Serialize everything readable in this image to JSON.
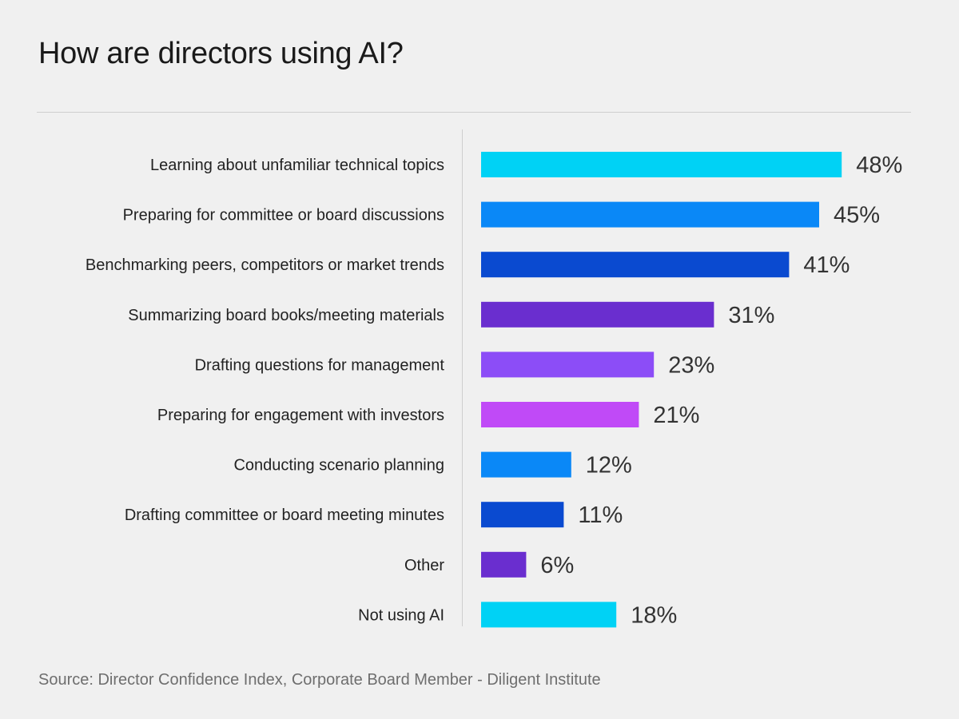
{
  "title": "How are directors using AI?",
  "source": "Source: Director Confidence Index, Corporate Board Member - Diligent Institute",
  "chart_data": {
    "type": "bar",
    "orientation": "horizontal",
    "title": "How are directors using AI?",
    "xlabel": "",
    "ylabel": "",
    "xlim": [
      0,
      50
    ],
    "grid": false,
    "legend": "none",
    "value_suffix": "%",
    "categories": [
      "Learning about unfamiliar technical topics",
      "Preparing for committee or board discussions",
      "Benchmarking peers, competitors or market trends",
      "Summarizing board books/meeting materials",
      "Drafting questions for management",
      "Preparing for engagement with investors",
      "Conducting scenario planning",
      "Drafting committee or board meeting minutes",
      "Other",
      "Not using AI"
    ],
    "values": [
      48,
      45,
      41,
      31,
      23,
      21,
      12,
      11,
      6,
      18
    ],
    "colors": [
      "#00d2f5",
      "#0a88f7",
      "#0a4ad0",
      "#6a2ecf",
      "#8c4df7",
      "#c04af7",
      "#0a88f7",
      "#0a4ad0",
      "#6a2ecf",
      "#00d2f5"
    ]
  }
}
